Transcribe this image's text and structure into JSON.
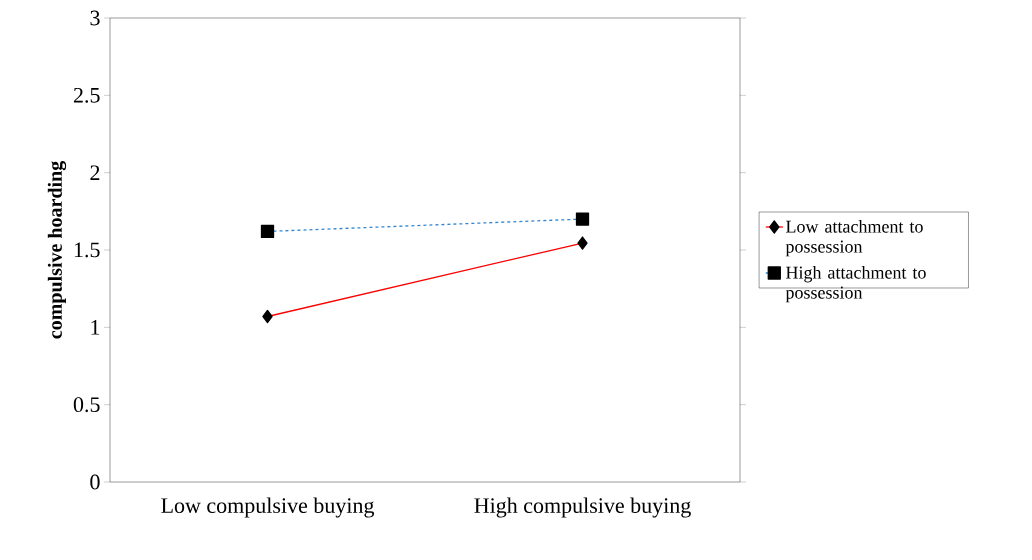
{
  "chart_data": {
    "type": "line",
    "ylabel": "compulsive hoarding",
    "categories": [
      "Low compulsive buying",
      "High compulsive buying"
    ],
    "series": [
      {
        "name": "Low attachment to possession",
        "color": "#ff0000",
        "values": [
          1.07,
          1.545
        ],
        "marker": "diamond",
        "line_style": "solid"
      },
      {
        "name": "High attachment to possession",
        "color": "#2e86d4",
        "values": [
          1.62,
          1.7
        ],
        "marker": "square",
        "line_style": "dashed"
      }
    ],
    "ylim": [
      0,
      3
    ],
    "yticks": [
      0,
      0.5,
      1,
      1.5,
      2,
      2.5,
      3
    ],
    "grid": false,
    "legend": "right"
  }
}
